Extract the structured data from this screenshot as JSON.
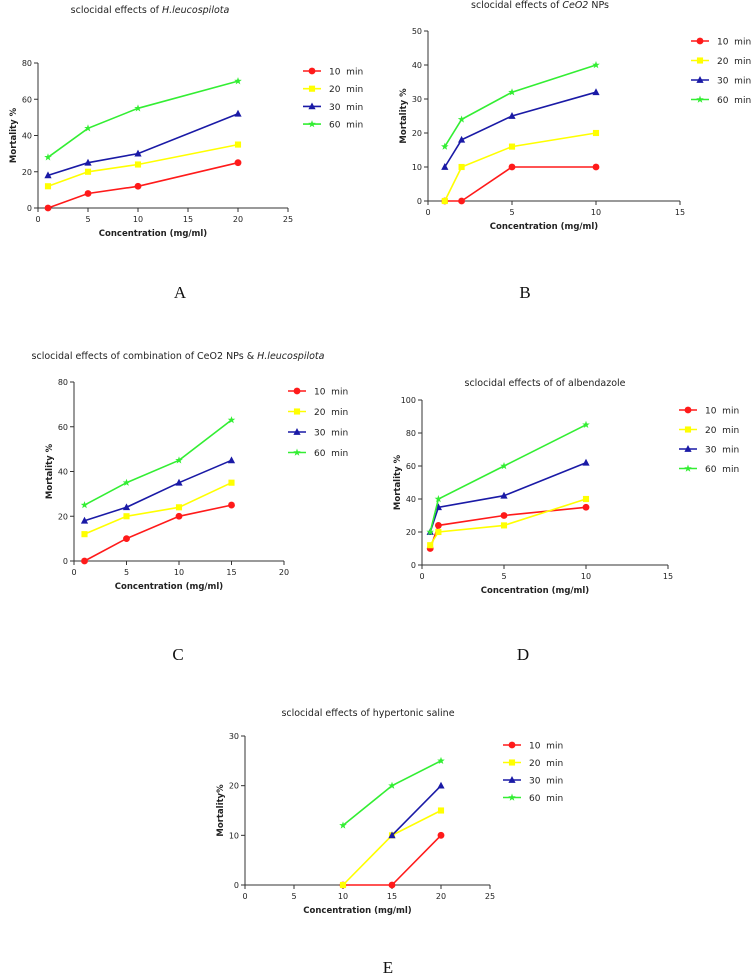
{
  "colors": {
    "10 min": "#ff1a1a",
    "20 min": "#ffff00",
    "30 min": "#1a1aa6",
    "60 min": "#33ee33"
  },
  "markers": {
    "10 min": "circle",
    "20 min": "square",
    "30 min": "triangle",
    "60 min": "star"
  },
  "chart_data": [
    {
      "type": "line",
      "panel": "A",
      "title": "sclocidal effects of ",
      "title_italic": "H.leucospilota",
      "xlabel": "Concentration (mg/ml)",
      "ylabel": "Mortality %",
      "xlim": [
        0,
        25
      ],
      "ylim": [
        0,
        80
      ],
      "xticks": [
        0,
        5,
        10,
        15,
        20,
        25
      ],
      "yticks": [
        0,
        20,
        40,
        60,
        80
      ],
      "x": [
        1,
        5,
        10,
        20
      ],
      "series": [
        {
          "name": "10 min",
          "values": [
            0,
            8,
            12,
            25
          ]
        },
        {
          "name": "20 min",
          "values": [
            12,
            20,
            24,
            35
          ]
        },
        {
          "name": "30 min",
          "values": [
            18,
            25,
            30,
            52
          ]
        },
        {
          "name": "60 min",
          "values": [
            28,
            44,
            55,
            70
          ]
        }
      ],
      "legend": "right"
    },
    {
      "type": "line",
      "panel": "B",
      "title": "sclocidal effects of ",
      "title_italic": "CeO2",
      "title_suffix": " NPs",
      "xlabel": "Concentration (mg/ml)",
      "ylabel": "Mortality %",
      "xlim": [
        0,
        15
      ],
      "ylim": [
        0,
        50
      ],
      "xticks": [
        0,
        5,
        10,
        15
      ],
      "yticks": [
        0,
        10,
        20,
        30,
        40,
        50
      ],
      "x": [
        1,
        2,
        5,
        10
      ],
      "series": [
        {
          "name": "10 min",
          "values": [
            0,
            0,
            10,
            10
          ]
        },
        {
          "name": "20 min",
          "values": [
            0,
            10,
            16,
            20
          ]
        },
        {
          "name": "30 min",
          "values": [
            10,
            18,
            25,
            32
          ]
        },
        {
          "name": "60 min",
          "values": [
            16,
            24,
            32,
            40
          ]
        }
      ],
      "legend": "right"
    },
    {
      "type": "line",
      "panel": "C",
      "title": "sclocidal effects of combination of CeO2 NPs & ",
      "title_italic": "H.leucospilota",
      "xlabel": "Concentration (mg/ml)",
      "ylabel": "Mortality %",
      "xlim": [
        0,
        20
      ],
      "ylim": [
        0,
        80
      ],
      "xticks": [
        0,
        5,
        10,
        15,
        20
      ],
      "yticks": [
        0,
        20,
        40,
        60,
        80
      ],
      "x": [
        1,
        5,
        10,
        15
      ],
      "series": [
        {
          "name": "10 min",
          "values": [
            0,
            10,
            20,
            25
          ]
        },
        {
          "name": "20 min",
          "values": [
            12,
            20,
            24,
            35
          ]
        },
        {
          "name": "30 min",
          "values": [
            18,
            24,
            35,
            45
          ]
        },
        {
          "name": "60 min",
          "values": [
            25,
            35,
            45,
            63
          ]
        }
      ],
      "legend": "right"
    },
    {
      "type": "line",
      "panel": "D",
      "title": "sclocidal effects of  of albendazole",
      "xlabel": "Concentration (mg/ml)",
      "ylabel": "Mortality %",
      "xlim": [
        0,
        15
      ],
      "ylim": [
        0,
        100
      ],
      "xticks": [
        0,
        5,
        10,
        15
      ],
      "yticks": [
        0,
        20,
        40,
        60,
        80,
        100
      ],
      "x": [
        0.5,
        1,
        5,
        10
      ],
      "series": [
        {
          "name": "10 min",
          "values": [
            10,
            24,
            30,
            35
          ]
        },
        {
          "name": "20 min",
          "values": [
            12,
            20,
            24,
            40
          ]
        },
        {
          "name": "30 min",
          "values": [
            20,
            35,
            42,
            62
          ]
        },
        {
          "name": "60 min",
          "values": [
            20,
            40,
            60,
            85
          ]
        }
      ],
      "legend": "right"
    },
    {
      "type": "line",
      "panel": "E",
      "title": "sclocidal effects of hypertonic saline",
      "xlabel": "Concentration (mg/ml)",
      "ylabel": "Mortality%",
      "xlim": [
        0,
        25
      ],
      "ylim": [
        0,
        30
      ],
      "xticks": [
        0,
        5,
        10,
        15,
        20,
        25
      ],
      "yticks": [
        0,
        10,
        20,
        30
      ],
      "series": [
        {
          "name": "10 min",
          "x": [
            10,
            15,
            20
          ],
          "values": [
            0,
            0,
            10
          ]
        },
        {
          "name": "20 min",
          "x": [
            10,
            15,
            20
          ],
          "values": [
            0,
            10,
            15
          ]
        },
        {
          "name": "30 min",
          "x": [
            15,
            20
          ],
          "values": [
            10,
            20
          ]
        },
        {
          "name": "60 min",
          "x": [
            10,
            15,
            20
          ],
          "values": [
            12,
            20,
            25
          ]
        }
      ],
      "legend": "right"
    }
  ]
}
